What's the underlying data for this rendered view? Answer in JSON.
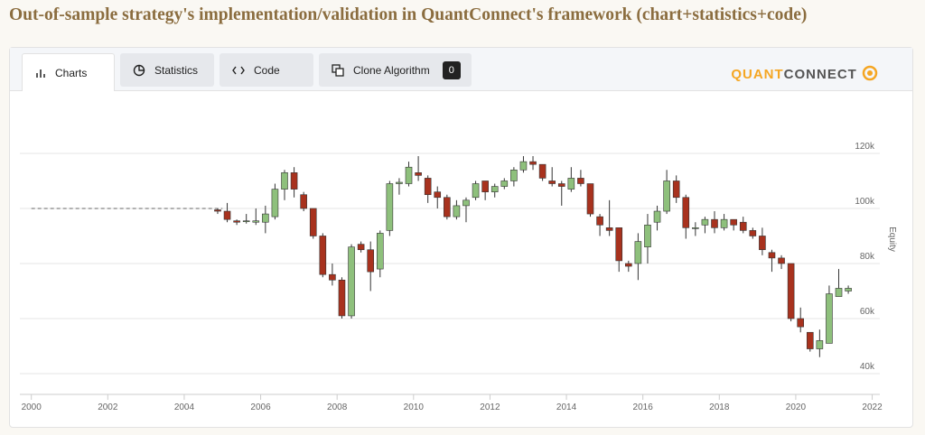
{
  "header": {
    "title": "Out-of-sample strategy's implementation/validation in QuantConnect's framework (chart+statistics+code)"
  },
  "tabs": [
    "Charts",
    "Statistics",
    "Code",
    "Clone Algorithm"
  ],
  "clone_count": "0",
  "logo": [
    "QUANT",
    "CONNECT"
  ],
  "chart_data": {
    "type": "candlestick",
    "y_label": "Equity",
    "up_color": "#8ec07c",
    "down_color": "#a8321e",
    "xlim": [
      1999.7,
      2022.2
    ],
    "xticks": [
      2000,
      2002,
      2004,
      2006,
      2008,
      2010,
      2012,
      2014,
      2016,
      2018,
      2020,
      2022
    ],
    "ylim": [
      34100,
      139000
    ],
    "yticks": [
      {
        "value": 40000,
        "label": "40k"
      },
      {
        "value": 60000,
        "label": "60k"
      },
      {
        "value": 80000,
        "label": "80k"
      },
      {
        "value": 100000,
        "label": "100k"
      },
      {
        "value": 120000,
        "label": "120k"
      }
    ],
    "grid": true,
    "baseline": {
      "x": [
        2000,
        2005
      ],
      "values": [
        100000,
        100000
      ]
    },
    "x": [
      2004.875,
      2005.125,
      2005.375,
      2005.625,
      2005.875,
      2006.125,
      2006.375,
      2006.625,
      2006.875,
      2007.125,
      2007.375,
      2007.625,
      2007.875,
      2008.125,
      2008.375,
      2008.625,
      2008.875,
      2009.125,
      2009.375,
      2009.625,
      2009.875,
      2010.125,
      2010.375,
      2010.625,
      2010.875,
      2011.125,
      2011.375,
      2011.625,
      2011.875,
      2012.125,
      2012.375,
      2012.625,
      2012.875,
      2013.125,
      2013.375,
      2013.625,
      2013.875,
      2014.125,
      2014.375,
      2014.625,
      2014.875,
      2015.125,
      2015.375,
      2015.625,
      2015.875,
      2016.125,
      2016.375,
      2016.625,
      2016.875,
      2017.125,
      2017.375,
      2017.625,
      2017.875,
      2018.125,
      2018.375,
      2018.625,
      2018.875,
      2019.125,
      2019.375,
      2019.625,
      2019.875,
      2020.125,
      2020.375,
      2020.625,
      2020.875,
      2021.125,
      2021.375
    ],
    "open": [
      99500,
      99000,
      95500,
      95500,
      95000,
      95000,
      97000,
      107000,
      113000,
      105000,
      100000,
      90000,
      76000,
      74000,
      61000,
      87000,
      85000,
      78000,
      92000,
      109000,
      109000,
      113000,
      111000,
      106000,
      104000,
      97000,
      101000,
      104000,
      110000,
      106000,
      108000,
      110000,
      114000,
      117000,
      116000,
      110000,
      109000,
      107000,
      111000,
      109000,
      97000,
      93000,
      93000,
      80000,
      80000,
      86000,
      95000,
      99000,
      110000,
      104000,
      93000,
      94000,
      96000,
      93000,
      96000,
      95000,
      92000,
      90000,
      84000,
      82000,
      80000,
      60000,
      55000,
      49000,
      51000,
      68000,
      70000
    ],
    "high": [
      100000,
      102000,
      96000,
      98000,
      100000,
      101000,
      109000,
      114000,
      115000,
      106000,
      100000,
      91000,
      80000,
      75000,
      87000,
      88000,
      88000,
      92000,
      110000,
      111000,
      117000,
      119000,
      112000,
      108000,
      105000,
      103000,
      104000,
      110000,
      110000,
      109000,
      111000,
      115000,
      119000,
      119000,
      116000,
      115000,
      110000,
      115000,
      114000,
      109000,
      98000,
      103000,
      93000,
      81000,
      91000,
      98000,
      101000,
      114000,
      112000,
      105000,
      95000,
      97000,
      99000,
      98000,
      96000,
      97000,
      93000,
      93000,
      85000,
      83000,
      80000,
      64000,
      55000,
      56000,
      72000,
      78000,
      72000
    ],
    "low": [
      98000,
      95000,
      94000,
      94500,
      94000,
      91000,
      96000,
      103000,
      104000,
      99000,
      89000,
      75000,
      72000,
      60000,
      60000,
      84000,
      70000,
      75000,
      90000,
      105000,
      108000,
      110000,
      102000,
      100000,
      96000,
      96000,
      95000,
      103000,
      103000,
      104000,
      107000,
      108000,
      113000,
      114000,
      110000,
      108000,
      101000,
      106000,
      108000,
      97000,
      90000,
      90000,
      77000,
      77000,
      74000,
      80000,
      92000,
      98000,
      102000,
      89000,
      90000,
      91000,
      91000,
      92000,
      92000,
      91000,
      89000,
      83000,
      77000,
      78000,
      59000,
      55000,
      48000,
      46000,
      51000,
      68000,
      69000
    ],
    "close": [
      99000,
      96000,
      95000,
      95500,
      95500,
      98000,
      107000,
      113000,
      107000,
      100000,
      90000,
      76000,
      74000,
      61000,
      86000,
      85000,
      77000,
      91000,
      109000,
      109500,
      115000,
      112000,
      105000,
      104000,
      97000,
      101000,
      103000,
      109000,
      106000,
      108000,
      110000,
      114000,
      117000,
      116000,
      111000,
      109000,
      108000,
      111000,
      109000,
      98000,
      94000,
      92000,
      81000,
      79000,
      88000,
      94000,
      99000,
      110000,
      104000,
      93000,
      93000,
      96000,
      93000,
      96000,
      94000,
      92000,
      90000,
      85000,
      82000,
      80000,
      60000,
      57000,
      49000,
      52000,
      69000,
      71000,
      71000
    ]
  }
}
